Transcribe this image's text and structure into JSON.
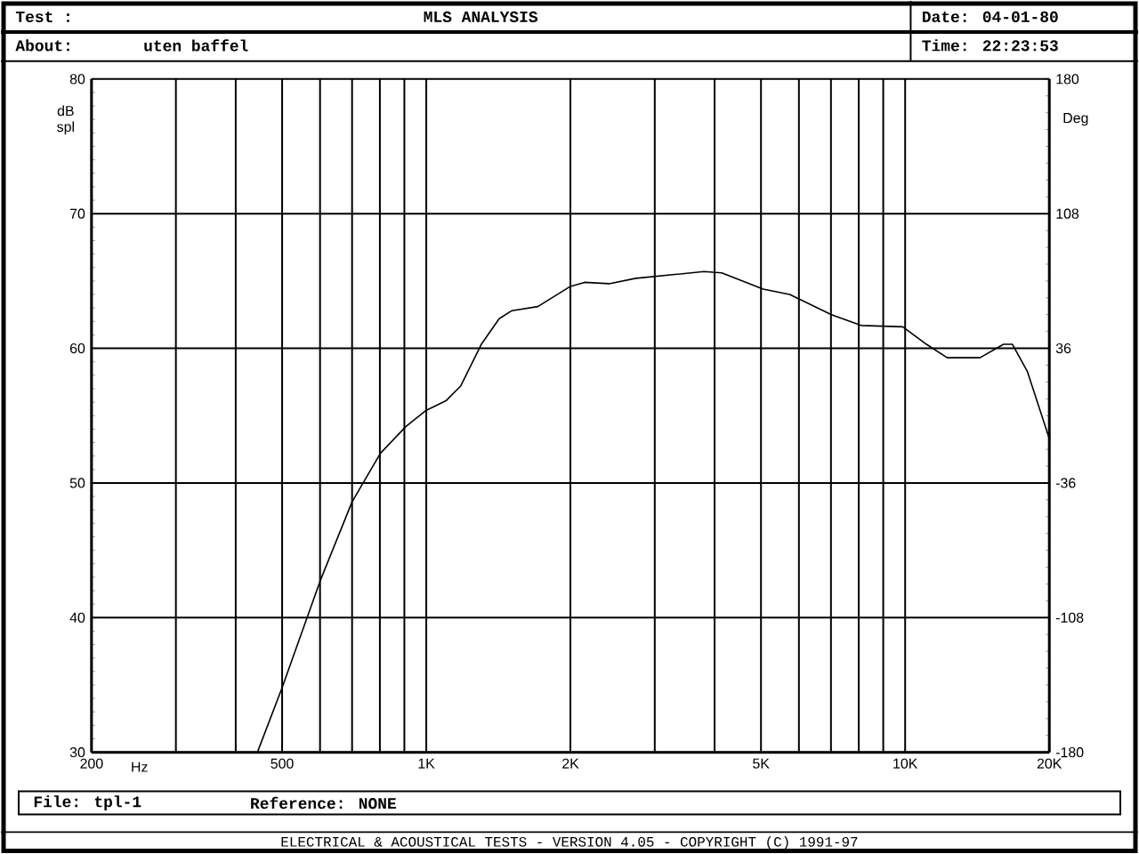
{
  "chart_data": {
    "type": "line",
    "title": "MLS ANALYSIS",
    "annotations": [
      "Test :",
      "About:",
      "uten baffel",
      "Date: 04-01-80",
      "Time: 22:23:53",
      "File: tpl-1",
      "Reference: NONE",
      "ELECTRICAL & ACOUSTICAL TESTS - VERSION 4.05 - COPYRIGHT (C) 1991-97"
    ],
    "xlabel": "Hz",
    "ylabel": "dB spl",
    "y2label": "Deg",
    "log": "x",
    "grid": true,
    "xlim": [
      200,
      20000
    ],
    "ylim": [
      30,
      80
    ],
    "y2lim": [
      -180,
      180
    ],
    "xticks": [
      200,
      {
        "value": 300,
        "label": null
      },
      {
        "value": 400,
        "label": null
      },
      500,
      {
        "value": 600,
        "label": null
      },
      {
        "value": 700,
        "label": null
      },
      {
        "value": 800,
        "label": null
      },
      {
        "value": 900,
        "label": null
      },
      {
        "value": 1000,
        "label": "1K"
      },
      {
        "value": 2000,
        "label": "2K"
      },
      {
        "value": 3000,
        "label": null
      },
      {
        "value": 4000,
        "label": null
      },
      {
        "value": 5000,
        "label": "5K"
      },
      {
        "value": 6000,
        "label": null
      },
      {
        "value": 7000,
        "label": null
      },
      {
        "value": 8000,
        "label": null
      },
      {
        "value": 9000,
        "label": null
      },
      {
        "value": 10000,
        "label": "10K"
      },
      {
        "value": 20000,
        "label": "20K"
      }
    ],
    "yticks": [
      30,
      40,
      50,
      60,
      70,
      80
    ],
    "y2ticks": [
      -180,
      -108,
      -36,
      36,
      108,
      180
    ],
    "x": [
      444,
      500,
      600,
      700,
      802,
      907,
      1000,
      1099,
      1180,
      1303,
      1420,
      1510,
      1710,
      2000,
      2140,
      2408,
      2738,
      3342,
      3800,
      4140,
      5053,
      5741,
      7015,
      8090,
      9886,
      11080,
      12240,
      14330,
      16050,
      16750,
      17990,
      20000
    ],
    "series": [
      {
        "color": "#000000",
        "values": [
          30,
          34.8,
          42.7,
          48.6,
          52.2,
          54.2,
          55.4,
          56.1,
          57.2,
          60.3,
          62.2,
          62.8,
          63.1,
          64.6,
          64.9,
          64.8,
          65.2,
          65.5,
          65.7,
          65.6,
          64.4,
          64.0,
          62.5,
          61.7,
          61.6,
          60.3,
          59.3,
          59.3,
          60.3,
          60.3,
          58.3,
          53.3
        ]
      }
    ]
  }
}
